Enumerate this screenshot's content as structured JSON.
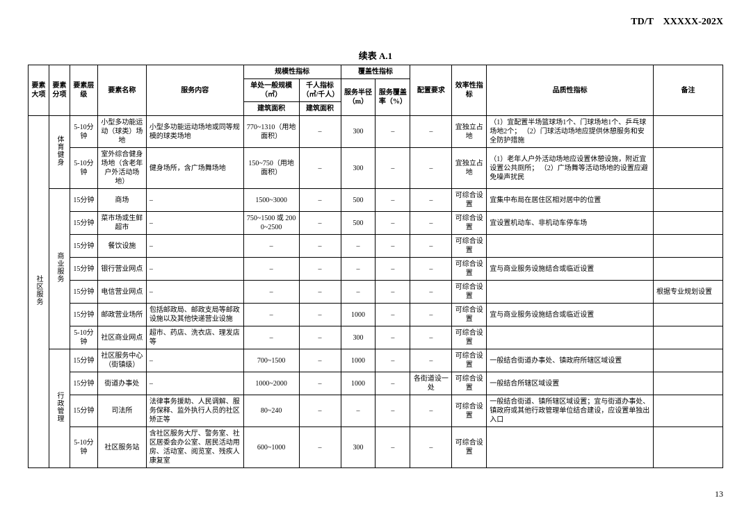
{
  "doc_code": "TD/T　XXXXX-202X",
  "table_title": "续表 A.1",
  "page_number": "13",
  "headers": {
    "c1": "要素大项",
    "c2": "要素分项",
    "c3": "要素层级",
    "c4": "要素名称",
    "c5": "服务内容",
    "g1": "规模性指标",
    "g1a": "单处一般规模（㎡）",
    "g1b": "千人指标（㎡/千人）",
    "g1a2": "建筑面积",
    "g1b2": "建筑面积",
    "g2": "覆盖性指标",
    "g2a": "服务半径（m）",
    "g2b": "服务覆盖率（%）",
    "c9": "配置要求",
    "c10": "效率性指标",
    "c11": "品质性指标",
    "c12": "备注"
  },
  "major": "社区服务",
  "groups": [
    {
      "name": "体育健身",
      "rows": [
        {
          "lvl": "5-10分钟",
          "elem": "小型多功能运动（球类）场地",
          "svc": "小型多功能运动场地或同等规模的球类场地",
          "scale": "770~1310（用地面积）",
          "kp": "–",
          "radius": "300",
          "cov": "–",
          "cfg": "–",
          "eff": "宜独立占地",
          "qual": "（1）宜配置半场篮球场1个、门球场地1个、乒乓球场地2个；\n（2）门球活动场地应提供休憩服务和安全防护措施",
          "note": ""
        },
        {
          "lvl": "5-10分钟",
          "elem": "室外综合健身场地（含老年户外活动场地）",
          "svc": "健身场所，含广场舞场地",
          "scale": "150~750（用地面积）",
          "kp": "–",
          "radius": "300",
          "cov": "–",
          "cfg": "–",
          "eff": "宜独立占地",
          "qual": "（1）老年人户外活动场地应设置休憩设施，附近宜设置公共厕所；\n（2）广场舞等活动场地的设置应避免噪声扰民",
          "note": ""
        }
      ]
    },
    {
      "name": "商业服务",
      "rows": [
        {
          "lvl": "15分钟",
          "elem": "商场",
          "svc": "–",
          "scale": "1500~3000",
          "kp": "–",
          "radius": "500",
          "cov": "–",
          "cfg": "–",
          "eff": "可综合设置",
          "qual": "宜集中布局在居住区相对居中的位置",
          "note": ""
        },
        {
          "lvl": "15分钟",
          "elem": "菜市场或生鲜超市",
          "svc": "–",
          "scale": "750~1500 或 2000~2500",
          "kp": "–",
          "radius": "500",
          "cov": "–",
          "cfg": "–",
          "eff": "可综合设置",
          "qual": "宜设置机动车、非机动车停车场",
          "note": ""
        },
        {
          "lvl": "15分钟",
          "elem": "餐饮设施",
          "svc": "–",
          "scale": "–",
          "kp": "–",
          "radius": "–",
          "cov": "–",
          "cfg": "–",
          "eff": "可综合设置",
          "qual": "",
          "note": ""
        },
        {
          "lvl": "15分钟",
          "elem": "银行营业网点",
          "svc": "–",
          "scale": "–",
          "kp": "–",
          "radius": "–",
          "cov": "–",
          "cfg": "–",
          "eff": "可综合设置",
          "qual": "宜与商业服务设施结合或临近设置",
          "note": ""
        },
        {
          "lvl": "15分钟",
          "elem": "电信营业网点",
          "svc": "–",
          "scale": "–",
          "kp": "–",
          "radius": "–",
          "cov": "–",
          "cfg": "–",
          "eff": "可综合设置",
          "qual": "",
          "note": "根据专业规划设置"
        },
        {
          "lvl": "15分钟",
          "elem": "邮政营业场所",
          "svc": "包括邮政局、邮政支局等邮政设施以及其他快递营业设施",
          "scale": "–",
          "kp": "–",
          "radius": "1000",
          "cov": "–",
          "cfg": "–",
          "eff": "可综合设置",
          "qual": "宜与商业服务设施结合或临近设置",
          "note": ""
        },
        {
          "lvl": "5-10分钟",
          "elem": "社区商业网点",
          "svc": "超市、药店、洗衣店、理发店等",
          "scale": "–",
          "kp": "–",
          "radius": "300",
          "cov": "–",
          "cfg": "–",
          "eff": "可综合设置",
          "qual": "",
          "note": ""
        }
      ]
    },
    {
      "name": "行政管理",
      "rows": [
        {
          "lvl": "15分钟",
          "elem": "社区服务中心（街镇级）",
          "svc": "–",
          "scale": "700~1500",
          "kp": "–",
          "radius": "1000",
          "cov": "–",
          "cfg": "–",
          "eff": "可综合设置",
          "qual": "一般结合街道办事处、镇政府所辖区域设置",
          "note": ""
        },
        {
          "lvl": "15分钟",
          "elem": "街道办事处",
          "svc": "–",
          "scale": "1000~2000",
          "kp": "–",
          "radius": "1000",
          "cov": "–",
          "cfg": "各街道设一处",
          "eff": "可综合设置",
          "qual": "一般结合所辖区域设置",
          "note": ""
        },
        {
          "lvl": "15分钟",
          "elem": "司法所",
          "svc": "法律事务援助、人民调解、服务保释、监外执行人员的社区矫正等",
          "scale": "80~240",
          "kp": "–",
          "radius": "–",
          "cov": "–",
          "cfg": "–",
          "eff": "可综合设置",
          "qual": "一般结合街道、镇所辖区域设置；宜与街道办事处、镇政府或其他行政管理单位结合建设，应设置单独出入口",
          "note": ""
        },
        {
          "lvl": "5-10分钟",
          "elem": "社区服务站",
          "svc": "含社区服务大厅、警务室、社区居委会办公室、居民活动用房、活动室、阅览室、残疾人康复室",
          "scale": "600~1000",
          "kp": "–",
          "radius": "300",
          "cov": "–",
          "cfg": "–",
          "eff": "可综合设置",
          "qual": "",
          "note": ""
        }
      ]
    }
  ]
}
